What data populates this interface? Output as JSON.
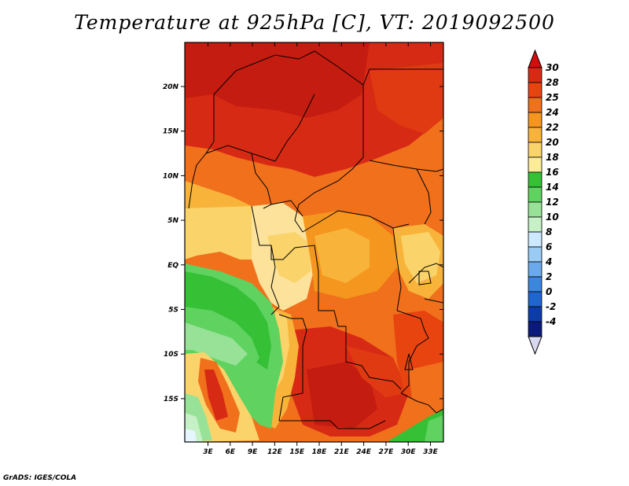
{
  "title": "Temperature at 925hPa [C], VT: 2019092500",
  "credit": "GrADS: IGES/COLA",
  "map": {
    "lon_labels": [
      "3E",
      "6E",
      "9E",
      "12E",
      "15E",
      "18E",
      "21E",
      "24E",
      "27E",
      "30E",
      "33E"
    ],
    "lat_labels": [
      "20N",
      "15N",
      "10N",
      "5N",
      "EQ",
      "5S",
      "10S",
      "15S"
    ],
    "variable": "Temperature at 925hPa",
    "units": "C",
    "valid_time": "2019092500"
  },
  "colorbar": {
    "levels": [
      "30",
      "28",
      "25",
      "24",
      "22",
      "20",
      "18",
      "16",
      "14",
      "12",
      "10",
      "8",
      "6",
      "4",
      "2",
      "0",
      "-2",
      "-4"
    ],
    "colors": [
      "#d72a14",
      "#e84410",
      "#f0701c",
      "#f5961e",
      "#f8b43a",
      "#fad46a",
      "#fcec9a",
      "#36c036",
      "#5fd25f",
      "#97e297",
      "#c6f0c6",
      "#cce9ff",
      "#99cbf5",
      "#6aa9ea",
      "#3d86e0",
      "#2065d0",
      "#0c3ca8",
      "#0a1a7a"
    ],
    "top_cap": "#d20d0d",
    "bottom_cap": "#d8d8f0"
  }
}
